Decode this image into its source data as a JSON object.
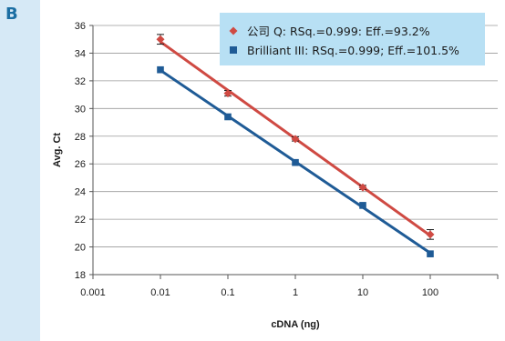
{
  "panel_label": "B",
  "chart_data": {
    "type": "scatter",
    "title": "",
    "xlabel": "cDNA (ng)",
    "ylabel": "Avg. Ct",
    "xscale": "log",
    "xlim": [
      0.001,
      1000
    ],
    "ylim": [
      18,
      36
    ],
    "x_ticks": [
      "0.001",
      "0.01",
      "0.1",
      "1",
      "10",
      "100"
    ],
    "y_ticks": [
      "18",
      "20",
      "22",
      "24",
      "26",
      "28",
      "30",
      "32",
      "34",
      "36"
    ],
    "grid": "horizontal",
    "legend_position": "top-right",
    "series": [
      {
        "name": "公司 Q: RSq.=0.999: Eff.=93.2%",
        "color": "#cf4a43",
        "marker": "diamond",
        "x": [
          0.01,
          0.1,
          1,
          10,
          100
        ],
        "y": [
          35.0,
          31.1,
          27.8,
          24.3,
          20.9
        ],
        "err": [
          0.35,
          0.2,
          0.15,
          0.15,
          0.35
        ],
        "trendline": true
      },
      {
        "name": "Brilliant III: RSq.=0.999; Eff.=101.5%",
        "color": "#1f5b96",
        "marker": "square",
        "x": [
          0.01,
          0.1,
          1,
          10,
          100
        ],
        "y": [
          32.8,
          29.4,
          26.1,
          23.0,
          19.5
        ],
        "err": [
          0,
          0,
          0,
          0,
          0
        ],
        "trendline": true
      }
    ]
  }
}
